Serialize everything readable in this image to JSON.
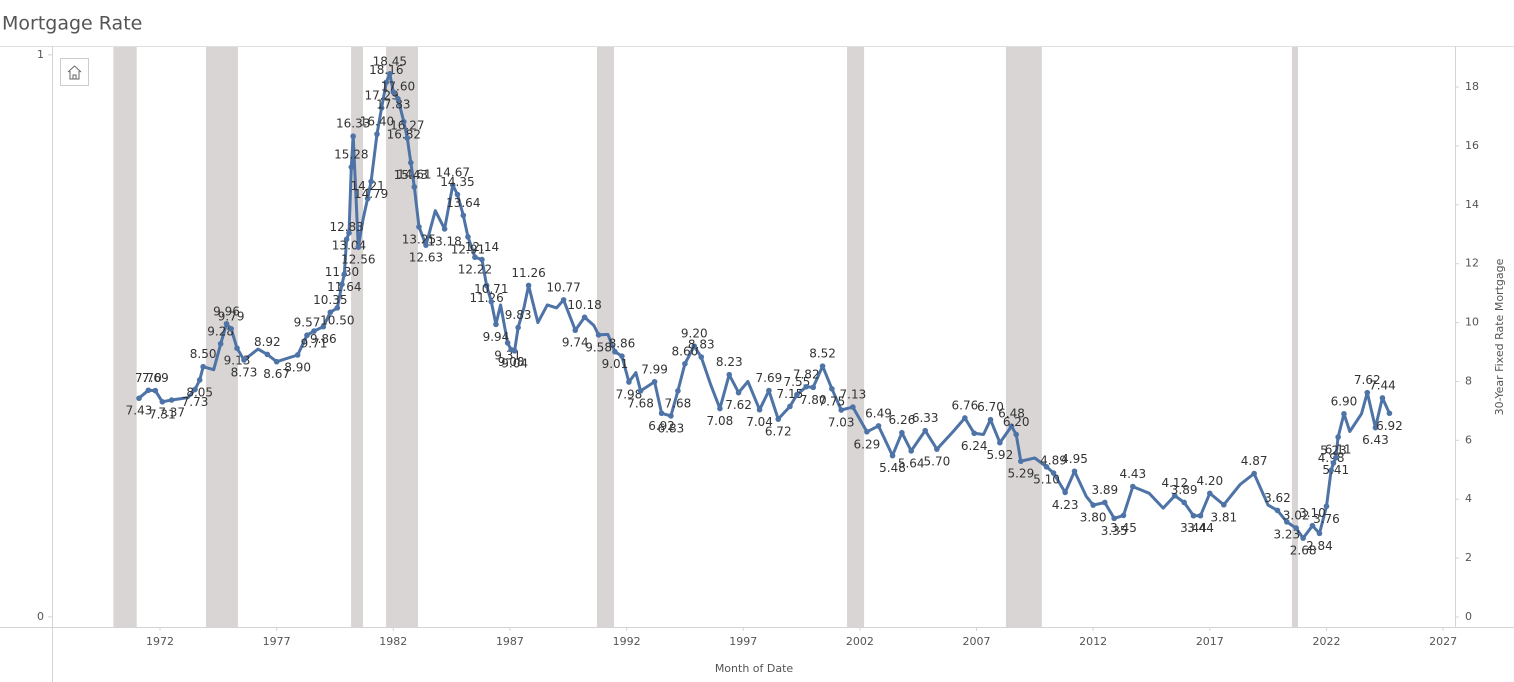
{
  "chart_data": {
    "type": "line",
    "title": "Mortgage Rate",
    "x_label": "Month of Date",
    "y2_label": "30-Year Fixed Rate Mortgage",
    "xlim": [
      1967.37,
      2027.51
    ],
    "xticks": [
      1972,
      1977,
      1982,
      1987,
      1992,
      1997,
      2002,
      2007,
      2012,
      2017,
      2022,
      2027
    ],
    "ylim": [
      -0.018,
      1.014
    ],
    "yticks": [
      0,
      1
    ],
    "y2lim": [
      -0.34,
      19.36
    ],
    "y2ticks": [
      0,
      2,
      4,
      6,
      8,
      10,
      12,
      14,
      16,
      18
    ],
    "recession_color": "#d9d5d5",
    "recessions": [
      [
        1970.0,
        1971.0
      ],
      [
        1973.97,
        1975.34
      ],
      [
        1980.19,
        1980.7
      ],
      [
        1981.69,
        1983.06
      ],
      [
        1990.73,
        1991.46
      ],
      [
        2001.45,
        2002.18
      ],
      [
        2008.26,
        2009.8
      ],
      [
        2020.52,
        2020.78
      ]
    ],
    "x": [
      1971.1,
      1971.5,
      1971.8,
      1972.1,
      1972.5,
      1973.2,
      1973.5,
      1973.7,
      1973.85,
      1974.3,
      1974.6,
      1974.85,
      1975.05,
      1975.3,
      1975.6,
      1976.2,
      1976.6,
      1977.0,
      1977.9,
      1978.3,
      1978.6,
      1979.0,
      1979.3,
      1979.6,
      1979.8,
      1979.9,
      1980.0,
      1980.1,
      1980.2,
      1980.28,
      1980.5,
      1980.7,
      1980.9,
      1981.05,
      1981.3,
      1981.5,
      1981.7,
      1981.85,
      1982.0,
      1982.2,
      1982.45,
      1982.6,
      1982.75,
      1982.9,
      1983.1,
      1983.4,
      1983.8,
      1984.2,
      1984.55,
      1984.75,
      1985.0,
      1985.2,
      1985.5,
      1985.8,
      1986.0,
      1986.2,
      1986.4,
      1986.6,
      1986.9,
      1987.05,
      1987.2,
      1987.35,
      1987.6,
      1987.8,
      1988.2,
      1988.6,
      1989.0,
      1989.3,
      1989.8,
      1990.2,
      1990.6,
      1990.8,
      1991.2,
      1991.5,
      1991.8,
      1992.1,
      1992.4,
      1992.6,
      1993.2,
      1993.5,
      1993.9,
      1994.2,
      1994.5,
      1994.9,
      1995.2,
      1995.6,
      1996.0,
      1996.4,
      1996.8,
      1997.2,
      1997.7,
      1998.1,
      1998.5,
      1999.0,
      1999.3,
      1999.7,
      2000.0,
      2000.4,
      2000.8,
      2001.2,
      2001.7,
      2002.3,
      2002.8,
      2003.4,
      2003.8,
      2004.2,
      2004.8,
      2005.3,
      2006.0,
      2006.5,
      2006.9,
      2007.3,
      2007.6,
      2008.0,
      2008.5,
      2008.7,
      2008.9,
      2009.5,
      2010.0,
      2010.3,
      2010.8,
      2011.2,
      2011.7,
      2012.0,
      2012.5,
      2012.9,
      2013.3,
      2013.7,
      2014.4,
      2015.0,
      2015.5,
      2015.9,
      2016.3,
      2016.6,
      2017.0,
      2017.6,
      2018.3,
      2018.9,
      2019.5,
      2019.9,
      2020.3,
      2020.7,
      2021.0,
      2021.4,
      2021.7,
      2022.0,
      2022.2,
      2022.3,
      2022.4,
      2022.5,
      2022.75,
      2023.0,
      2023.5,
      2023.75,
      2024.1,
      2024.4,
      2024.7
    ],
    "series": [
      {
        "color": "#4e73a6",
        "axis": "y2",
        "values": [
          7.43,
          7.7,
          7.69,
          7.31,
          7.37,
          7.45,
          7.73,
          8.05,
          8.5,
          8.4,
          9.28,
          9.96,
          9.79,
          9.13,
          8.73,
          9.1,
          8.92,
          8.67,
          8.9,
          9.57,
          9.71,
          9.86,
          10.35,
          10.5,
          11.3,
          11.64,
          12.83,
          13.04,
          15.28,
          16.33,
          12.56,
          13.5,
          14.21,
          14.79,
          16.4,
          17.29,
          18.16,
          18.45,
          17.83,
          17.6,
          16.82,
          16.27,
          15.43,
          14.61,
          13.25,
          12.63,
          13.8,
          13.18,
          14.67,
          14.35,
          13.64,
          12.91,
          12.22,
          12.14,
          11.26,
          10.71,
          9.94,
          10.6,
          9.31,
          9.08,
          9.04,
          9.83,
          10.5,
          11.26,
          10.0,
          10.6,
          10.5,
          10.77,
          9.74,
          10.18,
          9.9,
          9.58,
          9.6,
          9.01,
          8.86,
          7.98,
          8.3,
          7.68,
          7.99,
          6.92,
          6.83,
          7.68,
          8.6,
          9.2,
          8.83,
          7.9,
          7.08,
          8.23,
          7.62,
          8.0,
          7.04,
          7.69,
          6.72,
          7.15,
          7.55,
          7.82,
          7.8,
          8.52,
          7.75,
          7.03,
          7.13,
          6.29,
          6.49,
          5.48,
          6.26,
          5.64,
          6.33,
          5.7,
          6.3,
          6.76,
          6.24,
          6.2,
          6.7,
          5.92,
          6.48,
          6.2,
          5.29,
          5.4,
          5.1,
          4.89,
          4.23,
          4.95,
          4.1,
          3.8,
          3.89,
          3.35,
          3.45,
          4.43,
          4.2,
          3.7,
          4.12,
          3.89,
          3.44,
          3.44,
          4.2,
          3.81,
          4.5,
          4.87,
          3.8,
          3.62,
          3.23,
          3.02,
          2.68,
          3.1,
          2.84,
          3.76,
          4.98,
          5.23,
          5.41,
          6.11,
          6.9,
          6.3,
          6.9,
          7.62,
          6.43,
          7.44,
          6.92
        ],
        "value_labels": [
          "7.43",
          "7.70",
          "7.69",
          "7.31",
          "7.37",
          null,
          "7.73",
          "8.05",
          "8.50",
          null,
          "9.28",
          "9.96",
          "9.79",
          "9.13",
          "8.73",
          null,
          "8.92",
          "8.67",
          "8.90",
          "9.57",
          "9.71",
          "9.86",
          "10.35",
          "10.50",
          "11.30",
          "11.64",
          "12.83",
          "13.04",
          "15.28",
          "16.33",
          "12.56",
          null,
          "14.21",
          "14.79",
          "16.40",
          "17.29",
          "18.16",
          "18.45",
          "17.83",
          "17.60",
          "16.82",
          "16.27",
          "15.43",
          "14.61",
          "13.25",
          "12.63",
          null,
          "13.18",
          "14.67",
          "14.35",
          "13.64",
          "12.91",
          "12.22",
          "12.14",
          "11.26",
          "10.71",
          "9.94",
          null,
          "9.31",
          "9.08",
          "9.04",
          "9.83",
          null,
          "11.26",
          null,
          null,
          null,
          "10.77",
          "9.74",
          "10.18",
          null,
          "9.58",
          null,
          "9.01",
          "8.86",
          "7.98",
          null,
          "7.68",
          "7.99",
          "6.92",
          "6.83",
          "7.68",
          "8.60",
          "9.20",
          "8.83",
          null,
          "7.08",
          "8.23",
          "7.62",
          null,
          "7.04",
          "7.69",
          "6.72",
          "7.15",
          "7.55",
          "7.82",
          "7.80",
          "8.52",
          "7.75",
          "7.03",
          "7.13",
          "6.29",
          "6.49",
          "5.48",
          "6.26",
          "5.64",
          "6.33",
          "5.70",
          null,
          "6.76",
          "6.24",
          null,
          "6.70",
          "5.92",
          "6.48",
          "6.20",
          "5.29",
          null,
          "5.10",
          "4.89",
          "4.23",
          "4.95",
          null,
          "3.80",
          "3.89",
          "3.35",
          "3.45",
          "4.43",
          null,
          null,
          "4.12",
          "3.89",
          "3.44",
          "3.44",
          "4.20",
          "3.81",
          null,
          "4.87",
          null,
          "3.62",
          "3.23",
          "3.02",
          "2.68",
          "3.10",
          "2.84",
          "3.76",
          "4.98",
          "5.23",
          "5.41",
          "6.11",
          "6.90",
          null,
          null,
          "7.62",
          "6.43",
          "7.44",
          "6.92"
        ]
      }
    ]
  }
}
